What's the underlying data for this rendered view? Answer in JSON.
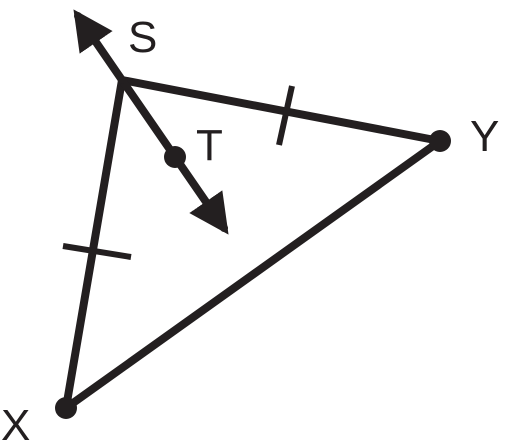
{
  "figure": {
    "points": {
      "s": "S",
      "t": "T",
      "x": "X",
      "y": "Y"
    },
    "colors": {
      "ink": "#231f20",
      "background": "#ffffff"
    }
  }
}
